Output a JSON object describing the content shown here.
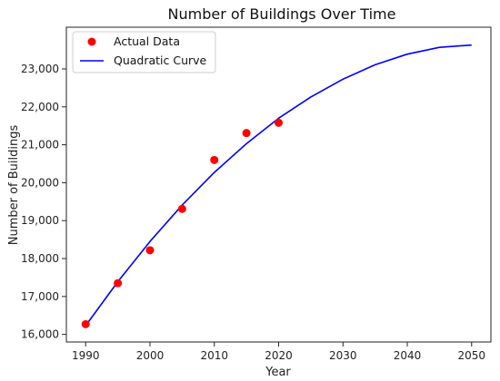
{
  "chart_data": {
    "type": "scatter",
    "title": "Number of Buildings Over Time",
    "xlabel": "Year",
    "ylabel": "Number of Buildings",
    "xlim": [
      1987,
      2053
    ],
    "ylim": [
      15800,
      24100
    ],
    "x_ticks": [
      1990,
      2000,
      2010,
      2020,
      2030,
      2040,
      2050
    ],
    "x_tick_labels": [
      "1990",
      "2000",
      "2010",
      "2020",
      "2030",
      "2040",
      "2050"
    ],
    "y_ticks": [
      16000,
      17000,
      18000,
      19000,
      20000,
      21000,
      22000,
      23000
    ],
    "y_tick_labels": [
      "16,000",
      "17,000",
      "18,000",
      "19,000",
      "20,000",
      "21,000",
      "22,000",
      "23,000"
    ],
    "grid": false,
    "legend_position": "top-left",
    "series": [
      {
        "name": "Actual Data",
        "kind": "scatter",
        "color": "#ff0000",
        "x": [
          1990,
          1995,
          2000,
          2005,
          2010,
          2015,
          2020
        ],
        "y": [
          16270,
          17350,
          18220,
          19310,
          20600,
          21310,
          21580
        ]
      },
      {
        "name": "Quadratic Curve",
        "kind": "line",
        "color": "#0000ff",
        "x": [
          1990,
          1995,
          2000,
          2005,
          2010,
          2015,
          2020,
          2025,
          2030,
          2035,
          2040,
          2045,
          2050
        ],
        "y": [
          16230,
          17390,
          18450,
          19410,
          20270,
          21030,
          21700,
          22260,
          22730,
          23110,
          23390,
          23570,
          23630
        ]
      }
    ]
  }
}
